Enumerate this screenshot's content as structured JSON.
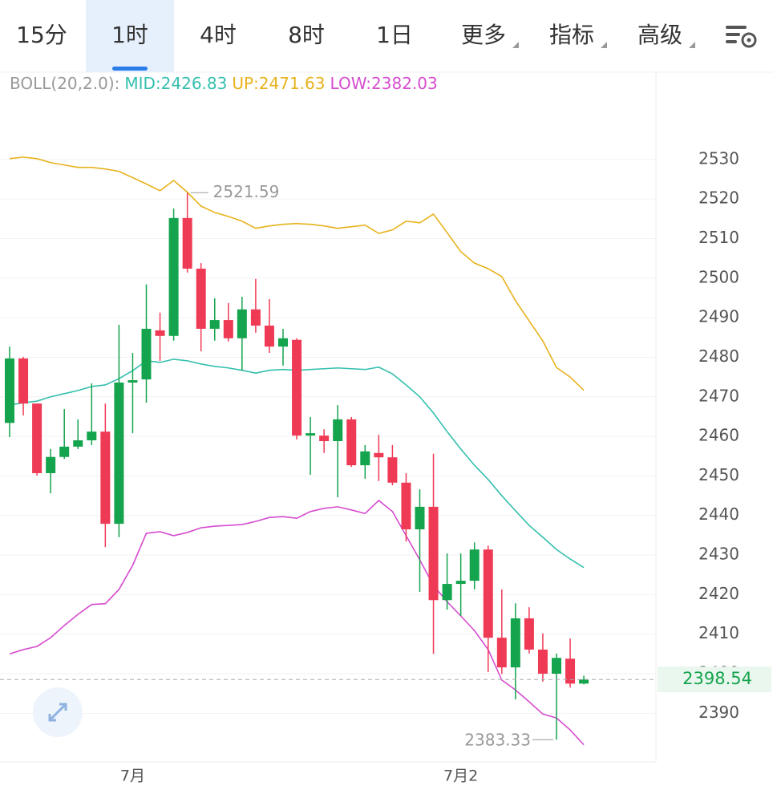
{
  "toolbar": {
    "tabs": [
      "15分",
      "1时",
      "4时",
      "8时",
      "1日"
    ],
    "menus": [
      "更多",
      "指标",
      "高级"
    ],
    "active": 1
  },
  "chart_data": {
    "type": "candlestick",
    "indicator": "BOLL(20,2.0):",
    "categories": [
      null,
      null,
      null,
      null,
      null,
      null,
      null,
      null,
      null,
      "7月",
      null,
      null,
      null,
      null,
      null,
      null,
      null,
      null,
      null,
      null,
      null,
      null,
      null,
      null,
      null,
      null,
      null,
      null,
      null,
      null,
      null,
      null,
      null,
      "7月2",
      null,
      null,
      null,
      null,
      null,
      null,
      null,
      null,
      null
    ],
    "open": [
      2463.4,
      2479.7,
      2468.3,
      2450.7,
      2454.8,
      2457.4,
      2459.0,
      2461.2,
      2437.9,
      2473.6,
      2474.4,
      2486.8,
      2485.4,
      2515.2,
      2502.4,
      2487.2,
      2489.4,
      2484.8,
      2492.1,
      2488.0,
      2482.7,
      2484.4,
      2460.2,
      2460.2,
      2458.8,
      2464.3,
      2452.7,
      2455.8,
      2454.7,
      2448.3,
      2436.5,
      2442.2,
      2418.6,
      2422.7,
      2423.5,
      2431.4,
      2409.1,
      2401.6,
      2414.0,
      2406.1,
      2400.0,
      2403.8,
      2397.5
    ],
    "high": [
      2482.7,
      2480.1,
      2468.3,
      2456.8,
      2466.9,
      2464.3,
      2473.4,
      2468.3,
      2488.2,
      2481.1,
      2498.4,
      2491.3,
      2517.6,
      2521.59,
      2503.8,
      2494.9,
      2493.7,
      2495.3,
      2499.8,
      2494.7,
      2487.2,
      2484.8,
      2464.9,
      2461.8,
      2467.9,
      2464.9,
      2457.8,
      2460.4,
      2457.8,
      2450.7,
      2446.6,
      2455.6,
      2430.4,
      2430.4,
      2433.2,
      2432.4,
      2421.3,
      2417.8,
      2416.8,
      2410.2,
      2405.1,
      2408.9,
      2399.5
    ],
    "low": [
      2459.8,
      2465.3,
      2450.1,
      2445.6,
      2454.3,
      2456.8,
      2457.8,
      2432.0,
      2434.5,
      2460.8,
      2468.5,
      2479.1,
      2484.2,
      2501.4,
      2481.5,
      2484.2,
      2484.0,
      2476.6,
      2486.2,
      2481.1,
      2477.9,
      2459.2,
      2450.3,
      2455.8,
      2444.6,
      2452.3,
      2449.3,
      2448.7,
      2447.6,
      2433.4,
      2420.7,
      2405.0,
      2416.2,
      2414.6,
      2421.3,
      2400.4,
      2399.9,
      2393.5,
      2405.1,
      2398.0,
      2383.33,
      2396.5,
      2397.3
    ],
    "close": [
      2479.7,
      2468.3,
      2450.7,
      2454.8,
      2457.4,
      2459.0,
      2461.2,
      2437.9,
      2473.6,
      2474.2,
      2487.2,
      2485.4,
      2515.2,
      2502.4,
      2487.2,
      2489.4,
      2484.8,
      2492.1,
      2488.0,
      2482.7,
      2484.8,
      2460.2,
      2460.8,
      2458.8,
      2464.3,
      2452.7,
      2456.2,
      2454.7,
      2448.3,
      2436.5,
      2442.2,
      2418.6,
      2422.7,
      2423.5,
      2431.4,
      2409.1,
      2401.6,
      2414.0,
      2406.1,
      2400.0,
      2404.0,
      2397.5,
      2398.54
    ],
    "up_color": "#14a44d",
    "down_color": "#ef3a55",
    "overlays": [
      {
        "name": "MID:2426.83",
        "color": "#34bfae",
        "values": [
          2467.9,
          2468.5,
          2468.9,
          2470.0,
          2470.8,
          2471.6,
          2472.6,
          2473.0,
          2474.6,
          2476.6,
          2479.1,
          2478.7,
          2479.5,
          2479.1,
          2478.3,
          2477.7,
          2477.3,
          2476.7,
          2476.0,
          2476.7,
          2476.9,
          2476.7,
          2476.9,
          2477.1,
          2477.3,
          2477.1,
          2476.9,
          2477.5,
          2475.8,
          2473.0,
          2470.0,
          2465.9,
          2461.2,
          2456.8,
          2452.7,
          2449.1,
          2445.0,
          2441.2,
          2437.5,
          2434.5,
          2431.4,
          2429.0,
          2426.83
        ]
      },
      {
        "name": "UP:2471.63",
        "color": "#e7b21c",
        "values": [
          2530.2,
          2530.6,
          2530.2,
          2529.2,
          2528.6,
          2528.0,
          2528.0,
          2527.6,
          2527.0,
          2525.4,
          2523.8,
          2522.1,
          2524.7,
          2521.7,
          2518.2,
          2516.6,
          2515.6,
          2514.4,
          2512.6,
          2513.2,
          2513.6,
          2513.8,
          2513.6,
          2513.2,
          2512.6,
          2513.0,
          2513.4,
          2511.3,
          2512.2,
          2514.4,
          2514.0,
          2516.2,
          2511.5,
          2506.7,
          2503.8,
          2502.4,
          2500.4,
          2494.3,
          2489.2,
          2484.1,
          2477.4,
          2475.0,
          2471.63
        ]
      },
      {
        "name": "LOW:2382.03",
        "color": "#d64ccf",
        "values": [
          2405.0,
          2406.1,
          2406.9,
          2409.1,
          2412.2,
          2415.0,
          2417.5,
          2417.7,
          2421.3,
          2427.4,
          2435.5,
          2435.9,
          2434.9,
          2435.7,
          2436.9,
          2437.3,
          2437.5,
          2437.7,
          2438.5,
          2439.5,
          2439.7,
          2439.3,
          2441.0,
          2441.8,
          2442.2,
          2441.4,
          2440.5,
          2443.8,
          2441.0,
          2434.9,
          2428.8,
          2422.3,
          2418.2,
          2414.6,
          2410.9,
          2406.1,
          2398.4,
          2395.9,
          2392.9,
          2389.8,
          2388.8,
          2385.8,
          2382.03
        ]
      }
    ],
    "ylim": [
      2377.7,
      2539.9
    ],
    "yticks": [
      2390,
      2400,
      2410,
      2420,
      2430,
      2440,
      2450,
      2460,
      2470,
      2480,
      2490,
      2500,
      2510,
      2520,
      2530
    ],
    "grid": true
  }
}
